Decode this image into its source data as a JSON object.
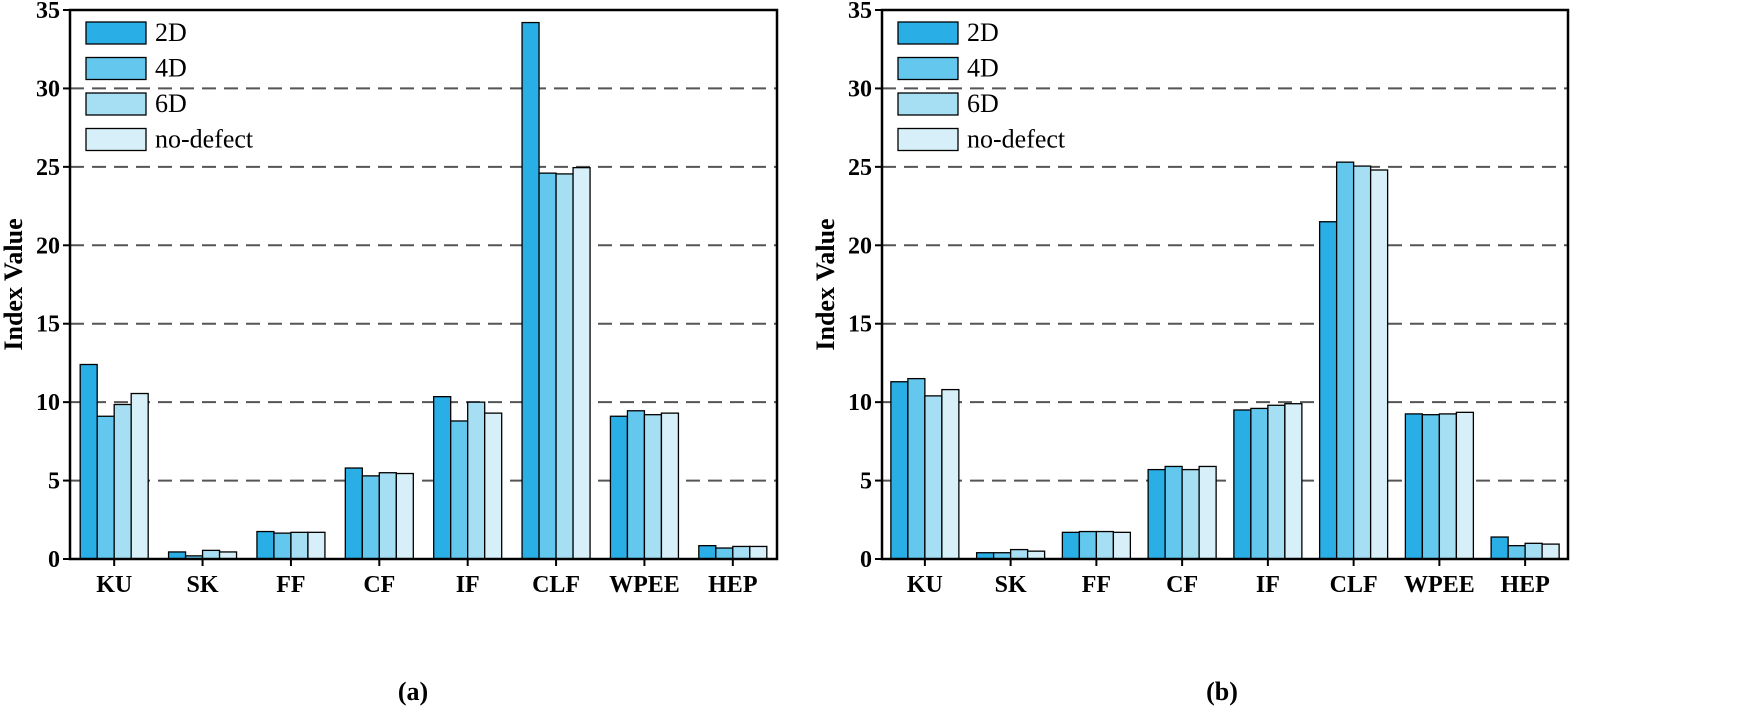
{
  "colors": {
    "series": [
      "#2aaee6",
      "#63c7ee",
      "#a6dff4",
      "#d6eff8"
    ],
    "grid": "#555555",
    "stroke": "#000000"
  },
  "chart_data": [
    {
      "type": "bar",
      "panel": "(a)",
      "ylabel": "Index Value",
      "xlabel": "",
      "ylim": [
        0,
        35
      ],
      "yticks": [
        0,
        5,
        10,
        15,
        20,
        25,
        30,
        35
      ],
      "grid": "horizontal-dashed",
      "legend_position": "top-left",
      "categories": [
        "KU",
        "SK",
        "FF",
        "CF",
        "IF",
        "CLF",
        "WPEE",
        "HEP"
      ],
      "series": [
        {
          "name": "2D",
          "values": [
            12.4,
            0.45,
            1.75,
            5.8,
            10.35,
            34.2,
            9.1,
            0.85
          ]
        },
        {
          "name": "4D",
          "values": [
            9.1,
            0.2,
            1.65,
            5.3,
            8.8,
            24.6,
            9.45,
            0.7
          ]
        },
        {
          "name": "6D",
          "values": [
            9.85,
            0.55,
            1.7,
            5.5,
            10.0,
            24.55,
            9.2,
            0.8
          ]
        },
        {
          "name": "no-defect",
          "values": [
            10.55,
            0.45,
            1.7,
            5.45,
            9.3,
            24.95,
            9.3,
            0.8
          ]
        }
      ]
    },
    {
      "type": "bar",
      "panel": "(b)",
      "ylabel": "Index Value",
      "xlabel": "",
      "ylim": [
        0,
        35
      ],
      "yticks": [
        0,
        5,
        10,
        15,
        20,
        25,
        30,
        35
      ],
      "grid": "horizontal-dashed",
      "legend_position": "top-left",
      "categories": [
        "KU",
        "SK",
        "FF",
        "CF",
        "IF",
        "CLF",
        "WPEE",
        "HEP"
      ],
      "series": [
        {
          "name": "2D",
          "values": [
            11.3,
            0.4,
            1.7,
            5.7,
            9.5,
            21.5,
            9.25,
            1.4
          ]
        },
        {
          "name": "4D",
          "values": [
            11.5,
            0.4,
            1.75,
            5.9,
            9.6,
            25.3,
            9.2,
            0.85
          ]
        },
        {
          "name": "6D",
          "values": [
            10.4,
            0.6,
            1.75,
            5.7,
            9.8,
            25.05,
            9.25,
            1.0
          ]
        },
        {
          "name": "no-defect",
          "values": [
            10.8,
            0.5,
            1.7,
            5.9,
            9.9,
            24.8,
            9.35,
            0.95
          ]
        }
      ]
    }
  ]
}
